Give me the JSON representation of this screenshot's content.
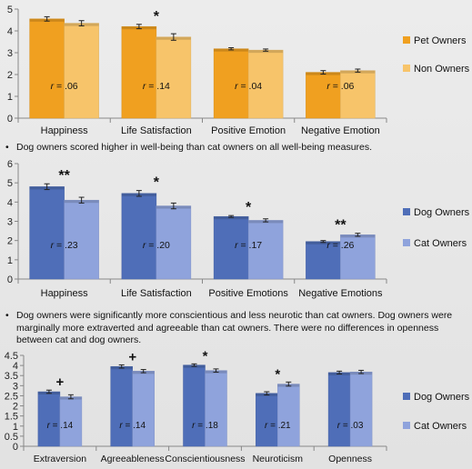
{
  "notes": [
    "Dog owners scored higher in well-being than cat owners on all well-being measures.",
    "Dog owners were significantly more conscientious and less neurotic than cat owners. Dog owners were marginally more extraverted and agreeable than cat owners. There were no differences in openness between cat and dog owners."
  ],
  "bullet_char": "•",
  "chart_data": [
    {
      "type": "bar",
      "categories": [
        "Happiness",
        "Life Satisfaction",
        "Positive Emotion",
        "Negative Emotion"
      ],
      "series": [
        {
          "name": "Pet Owners",
          "values": [
            4.55,
            4.2,
            3.18,
            2.1
          ],
          "errors": [
            0.1,
            0.1,
            0.05,
            0.08
          ],
          "color": "#f0a020"
        },
        {
          "name": "Non Owners",
          "values": [
            4.35,
            3.72,
            3.12,
            2.18
          ],
          "errors": [
            0.12,
            0.15,
            0.05,
            0.07
          ],
          "color": "#f7c46a"
        }
      ],
      "annotations": [
        "",
        "*",
        "",
        ""
      ],
      "r_labels": [
        "r = .06",
        "r = .14",
        "r = .04",
        "r = .06"
      ],
      "ylim": [
        0,
        5
      ],
      "yticks": [
        "0",
        "1",
        "2",
        "3",
        "4",
        "5"
      ],
      "legend": "right",
      "grid": false
    },
    {
      "type": "bar",
      "categories": [
        "Happiness",
        "Life Satisfaction",
        "Positive Emotions",
        "Negative Emotions"
      ],
      "series": [
        {
          "name": "Dog  Owners",
          "values": [
            4.8,
            4.45,
            3.25,
            1.95
          ],
          "errors": [
            0.15,
            0.15,
            0.05,
            0.05
          ],
          "color": "#4f6eb8"
        },
        {
          "name": "Cat Owners",
          "values": [
            4.1,
            3.8,
            3.05,
            2.3
          ],
          "errors": [
            0.15,
            0.15,
            0.08,
            0.08
          ],
          "color": "#8fa3dc"
        }
      ],
      "annotations": [
        "**",
        "*",
        "*",
        "**"
      ],
      "r_labels": [
        "r = .23",
        "r = .20",
        "r = .17",
        "r = .26"
      ],
      "ylim": [
        0,
        6
      ],
      "yticks": [
        "0",
        "1",
        "2",
        "3",
        "4",
        "5",
        "6"
      ],
      "legend": "right",
      "grid": false
    },
    {
      "type": "bar",
      "categories": [
        "Extraversion",
        "Agreeableness",
        "Conscientiousness",
        "Neuroticism",
        "Openness"
      ],
      "series": [
        {
          "name": "Dog Owners",
          "values": [
            2.7,
            3.95,
            4.02,
            2.62,
            3.65
          ],
          "errors": [
            0.08,
            0.08,
            0.06,
            0.08,
            0.07
          ],
          "color": "#4f6eb8"
        },
        {
          "name": "Cat Owners",
          "values": [
            2.45,
            3.72,
            3.75,
            3.08,
            3.68
          ],
          "errors": [
            0.1,
            0.08,
            0.08,
            0.1,
            0.08
          ],
          "color": "#8fa3dc"
        }
      ],
      "annotations": [
        "+",
        "+",
        "*",
        "*",
        ""
      ],
      "r_labels": [
        "r = .14",
        "r = .14",
        "r = .18",
        "r = .21",
        "r = .03"
      ],
      "ylim": [
        0,
        4.5
      ],
      "yticks": [
        "0",
        "0.5",
        "1",
        "1.5",
        "2",
        "2.5",
        "3",
        "3.5",
        "4",
        "4.5"
      ],
      "legend": "right",
      "grid": false
    }
  ]
}
